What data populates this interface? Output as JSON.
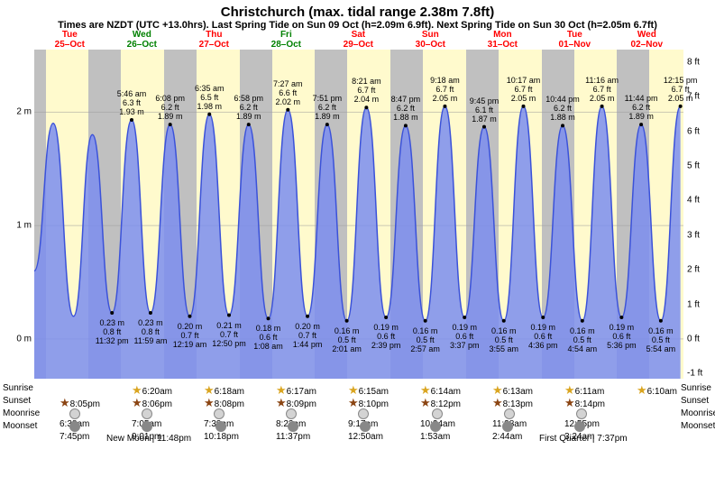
{
  "title": "Christchurch (max. tidal range 2.38m 7.8ft)",
  "subtitle": "Times are NZDT (UTC +13.0hrs). Last Spring Tide on Sun 09 Oct (h=2.09m 6.9ft). Next Spring Tide on Sun 30 Oct (h=2.05m 6.7ft)",
  "y_left_m": [
    0,
    1,
    2
  ],
  "y_right_ft": [
    -1,
    0,
    1,
    2,
    3,
    4,
    5,
    6,
    7,
    8
  ],
  "y_m_min": -0.35,
  "y_m_max": 2.55,
  "days": [
    {
      "dow": "Tue",
      "date": "25–Oct",
      "color": "#ff0000",
      "sunrise": "",
      "sunset": "8:05pm",
      "moonrise": "6:38am",
      "moonset": "7:45pm"
    },
    {
      "dow": "Wed",
      "date": "26–Oct",
      "color": "#008000",
      "sunrise": "6:20am",
      "sunset": "8:06pm",
      "moonrise": "7:05am",
      "moonset": "9:01pm"
    },
    {
      "dow": "Thu",
      "date": "27–Oct",
      "color": "#ff0000",
      "sunrise": "6:18am",
      "sunset": "8:08pm",
      "moonrise": "7:39am",
      "moonset": "10:18pm"
    },
    {
      "dow": "Fri",
      "date": "28–Oct",
      "color": "#008000",
      "sunrise": "6:17am",
      "sunset": "8:09pm",
      "moonrise": "8:22am",
      "moonset": "11:37pm"
    },
    {
      "dow": "Sat",
      "date": "29–Oct",
      "color": "#ff0000",
      "sunrise": "6:15am",
      "sunset": "8:10pm",
      "moonrise": "9:17am",
      "moonset": "12:50am"
    },
    {
      "dow": "Sun",
      "date": "30–Oct",
      "color": "#ff0000",
      "sunrise": "6:14am",
      "sunset": "8:12pm",
      "moonrise": "10:24am",
      "moonset": "1:53am"
    },
    {
      "dow": "Mon",
      "date": "31–Oct",
      "color": "#ff0000",
      "sunrise": "6:13am",
      "sunset": "8:13pm",
      "moonrise": "11:38am",
      "moonset": "2:44am"
    },
    {
      "dow": "Tue",
      "date": "01–Nov",
      "color": "#ff0000",
      "sunrise": "6:11am",
      "sunset": "8:14pm",
      "moonrise": "12:55pm",
      "moonset": "3:24am"
    },
    {
      "dow": "Wed",
      "date": "02–Nov",
      "color": "#ff0000",
      "sunrise": "6:10am",
      "sunset": "",
      "moonrise": "",
      "moonset": ""
    }
  ],
  "day_night_bars": [
    {
      "start": 0,
      "end": 0.15,
      "type": "night"
    },
    {
      "start": 0.15,
      "end": 0.72,
      "type": "day"
    },
    {
      "start": 0.72,
      "end": 1.15,
      "type": "night"
    },
    {
      "start": 1.15,
      "end": 1.72,
      "type": "day"
    },
    {
      "start": 1.72,
      "end": 2.15,
      "type": "night"
    },
    {
      "start": 2.15,
      "end": 2.72,
      "type": "day"
    },
    {
      "start": 2.72,
      "end": 3.15,
      "type": "night"
    },
    {
      "start": 3.15,
      "end": 3.72,
      "type": "day"
    },
    {
      "start": 3.72,
      "end": 4.15,
      "type": "night"
    },
    {
      "start": 4.15,
      "end": 4.72,
      "type": "day"
    },
    {
      "start": 4.72,
      "end": 5.15,
      "type": "night"
    },
    {
      "start": 5.15,
      "end": 5.72,
      "type": "day"
    },
    {
      "start": 5.72,
      "end": 6.15,
      "type": "night"
    },
    {
      "start": 6.15,
      "end": 6.72,
      "type": "day"
    },
    {
      "start": 6.72,
      "end": 7.15,
      "type": "night"
    },
    {
      "start": 7.15,
      "end": 7.72,
      "type": "day"
    },
    {
      "start": 7.72,
      "end": 8.15,
      "type": "night"
    },
    {
      "start": 8.15,
      "end": 8.6,
      "type": "day"
    }
  ],
  "tide_points": [
    {
      "t": 0.0,
      "h": 0.6
    },
    {
      "t": 0.25,
      "h": 1.9
    },
    {
      "t": 0.52,
      "h": 0.2
    },
    {
      "t": 0.77,
      "h": 1.8
    },
    {
      "t": 1.03,
      "h": 0.23,
      "time": "11:32 pm",
      "m": "0.23",
      "ft": "0.8"
    },
    {
      "t": 1.29,
      "h": 1.93,
      "time": "5:46 am",
      "m": "1.93",
      "hft": "6.3"
    },
    {
      "t": 1.54,
      "h": 0.23,
      "time": "11:59 am",
      "m": "0.23",
      "ft": "0.8"
    },
    {
      "t": 1.8,
      "h": 1.89,
      "time": "6:08 pm",
      "m": "1.89",
      "hft": "6.2"
    },
    {
      "t": 2.06,
      "h": 0.2,
      "time": "12:19 am",
      "m": "0.20",
      "ft": "0.7"
    },
    {
      "t": 2.32,
      "h": 1.98,
      "time": "6:35 am",
      "m": "1.98",
      "hft": "6.5"
    },
    {
      "t": 2.58,
      "h": 0.21,
      "time": "12:50 pm",
      "m": "0.21",
      "ft": "0.7"
    },
    {
      "t": 2.84,
      "h": 1.89,
      "time": "6:58 pm",
      "m": "1.89",
      "hft": "6.2"
    },
    {
      "t": 3.1,
      "h": 0.18,
      "time": "1:08 am",
      "m": "0.18",
      "ft": "0.6"
    },
    {
      "t": 3.36,
      "h": 2.02,
      "time": "7:27 am",
      "m": "2.02",
      "hft": "6.6"
    },
    {
      "t": 3.62,
      "h": 0.2,
      "time": "1:44 pm",
      "m": "0.20",
      "ft": "0.7"
    },
    {
      "t": 3.88,
      "h": 1.89,
      "time": "7:51 pm",
      "m": "1.89",
      "hft": "6.2"
    },
    {
      "t": 4.14,
      "h": 0.16,
      "time": "2:01 am",
      "m": "0.16",
      "ft": "0.5"
    },
    {
      "t": 4.4,
      "h": 2.04,
      "time": "8:21 am",
      "m": "2.04",
      "hft": "6.7"
    },
    {
      "t": 4.66,
      "h": 0.19,
      "time": "2:39 pm",
      "m": "0.19",
      "ft": "0.6"
    },
    {
      "t": 4.92,
      "h": 1.88,
      "time": "8:47 pm",
      "m": "1.88",
      "hft": "6.2"
    },
    {
      "t": 5.18,
      "h": 0.16,
      "time": "2:57 am",
      "m": "0.16",
      "ft": "0.5"
    },
    {
      "t": 5.44,
      "h": 2.05,
      "time": "9:18 am",
      "m": "2.05",
      "hft": "6.7"
    },
    {
      "t": 5.7,
      "h": 0.19,
      "time": "3:37 pm",
      "m": "0.19",
      "ft": "0.6"
    },
    {
      "t": 5.96,
      "h": 1.87,
      "time": "9:45 pm",
      "m": "1.87",
      "hft": "6.1"
    },
    {
      "t": 6.22,
      "h": 0.16,
      "time": "3:55 am",
      "m": "0.16",
      "ft": "0.5"
    },
    {
      "t": 6.48,
      "h": 2.05,
      "time": "10:17 am",
      "m": "2.05",
      "hft": "6.7"
    },
    {
      "t": 6.74,
      "h": 0.19,
      "time": "4:36 pm",
      "m": "0.19",
      "ft": "0.6"
    },
    {
      "t": 7.0,
      "h": 1.88,
      "time": "10:44 pm",
      "m": "1.88",
      "hft": "6.2"
    },
    {
      "t": 7.26,
      "h": 0.16,
      "time": "4:54 am",
      "m": "0.16",
      "ft": "0.5"
    },
    {
      "t": 7.52,
      "h": 2.05,
      "time": "11:16 am",
      "m": "2.05",
      "hft": "6.7"
    },
    {
      "t": 7.78,
      "h": 0.19,
      "time": "5:36 pm",
      "m": "0.19",
      "ft": "0.6"
    },
    {
      "t": 8.04,
      "h": 1.89,
      "time": "11:44 pm",
      "m": "1.89",
      "hft": "6.2"
    },
    {
      "t": 8.3,
      "h": 0.16,
      "time": "5:54 am",
      "m": "0.16",
      "ft": "0.5"
    },
    {
      "t": 8.56,
      "h": 2.05,
      "time": "12:15 pm",
      "m": "2.05",
      "hft": "6.7"
    }
  ],
  "n_days": 8.6,
  "tide_fill": "#7b8dee",
  "tide_stroke": "#3b52d9",
  "dot_color": "#000000",
  "lunar_phases": [
    {
      "label": "New Moon | 11:48pm",
      "day": 1
    },
    {
      "label": "First Quarter | 7:37pm",
      "day": 7
    }
  ],
  "row_labels": {
    "sunrise": "Sunrise",
    "sunset": "Sunset",
    "moonrise": "Moonrise",
    "moonset": "Moonset"
  }
}
